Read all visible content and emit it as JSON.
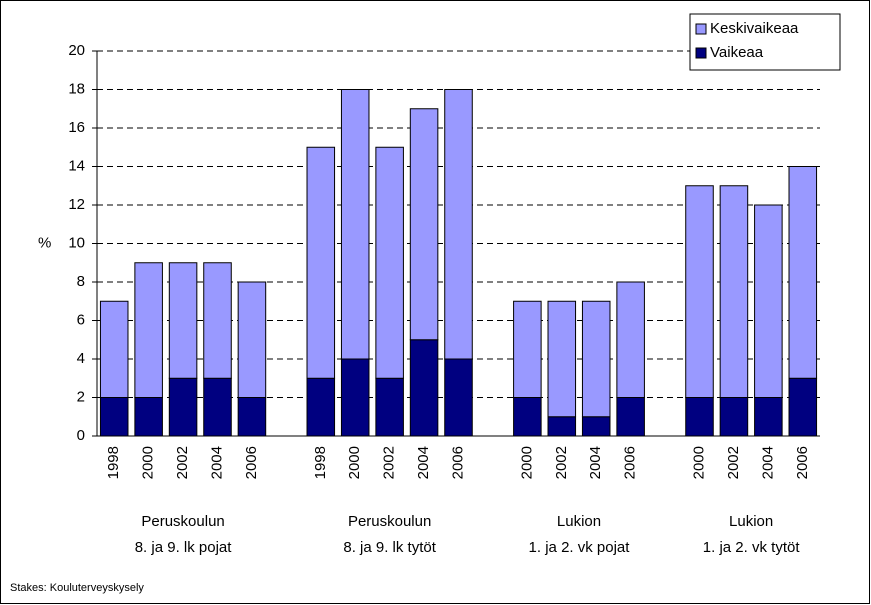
{
  "chart_data": {
    "type": "stacked_bar",
    "y_label": "%",
    "source": "Stakes: Kouluterveyskysely",
    "categories": [
      "1998",
      "2000",
      "2002",
      "2004",
      "2006",
      null,
      "1998",
      "2000",
      "2002",
      "2004",
      "2006",
      null,
      "2000",
      "2002",
      "2004",
      "2006",
      null,
      "2000",
      "2002",
      "2004",
      "2006"
    ],
    "group_labels": [
      [
        "Peruskoulun",
        "8. ja 9. lk pojat"
      ],
      [
        "Peruskoulun",
        "8. ja 9. lk tytöt"
      ],
      [
        "Lukion",
        "1. ja 2. vk pojat"
      ],
      [
        "Lukion",
        "1. ja 2. vk tytöt"
      ]
    ],
    "series": [
      {
        "name": "Vaikeaa",
        "color": "#000080",
        "values": [
          2,
          2,
          3,
          3,
          2,
          null,
          3,
          4,
          3,
          5,
          4,
          null,
          2,
          1,
          1,
          2,
          null,
          2,
          2,
          2,
          3
        ]
      },
      {
        "name": "Keskivaikeaa",
        "color": "#9999ff",
        "values": [
          5,
          7,
          6,
          6,
          6,
          null,
          12,
          14,
          12,
          12,
          14,
          null,
          5,
          6,
          6,
          6,
          null,
          11,
          11,
          10,
          11
        ]
      }
    ],
    "ylim": [
      0,
      20
    ],
    "yticks": [
      0,
      2,
      4,
      6,
      8,
      10,
      12,
      14,
      16,
      18,
      20
    ],
    "grid": true,
    "legend": "top-right"
  }
}
